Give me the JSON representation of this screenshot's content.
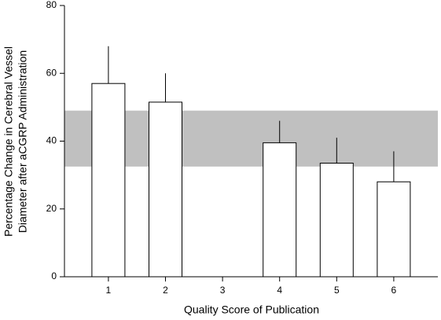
{
  "chart_data": {
    "type": "bar",
    "x_label": "Quality Score of Publication",
    "y_label": [
      "Percentage Change in Cerebral Vessel",
      "Diameter after aCGRP Administration"
    ],
    "categories": [
      "1",
      "2",
      "3",
      "4",
      "5",
      "6"
    ],
    "values": [
      57,
      51.5,
      null,
      39.5,
      33.5,
      28
    ],
    "errors": [
      11,
      8.5,
      null,
      6.5,
      7.5,
      9
    ],
    "color": "#ffffff",
    "reference_band": {
      "from": 32.5,
      "to": 49,
      "color": "#c0c0c0"
    },
    "ylim": [
      0,
      80
    ],
    "yticks": [
      0,
      20,
      40,
      60,
      80
    ]
  }
}
